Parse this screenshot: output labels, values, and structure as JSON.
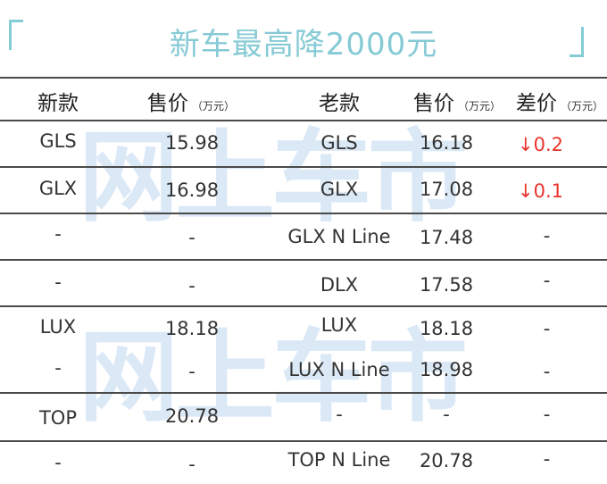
{
  "title": "新车最高降2000元",
  "watermark": "网上车市",
  "headers": {
    "new_model": "新款",
    "new_price": "售价",
    "new_price_unit": "（万元）",
    "old_model": "老款",
    "old_price": "售价",
    "old_price_unit": "（万元）",
    "diff": "差价",
    "diff_unit": "（万元）"
  },
  "rows": [
    {
      "new_model": "GLS",
      "new_price": "15.98",
      "old_model": "GLS",
      "old_price": "16.18",
      "diff": "↓0.2"
    },
    {
      "new_model": "GLX",
      "new_price": "16.98",
      "old_model": "GLX",
      "old_price": "17.08",
      "diff": "↓0.1"
    },
    {
      "new_model": "-",
      "new_price": "-",
      "old_model": "GLX N Line",
      "old_price": "17.48",
      "diff": "-"
    },
    {
      "new_model": "-",
      "new_price": "-",
      "old_model": "DLX",
      "old_price": "17.58",
      "diff": "-"
    },
    {
      "new_model": "LUX",
      "new_price": "18.18",
      "old_model": "LUX",
      "old_price": "18.18",
      "diff": "-"
    },
    {
      "new_model": "-",
      "new_price": "-",
      "old_model": "LUX N Line",
      "old_price": "18.98",
      "diff": "-"
    },
    {
      "new_model": "TOP",
      "new_price": "20.78",
      "old_model": "-",
      "old_price": "-",
      "diff": "-"
    },
    {
      "new_model": "-",
      "new_price": "-",
      "old_model": "TOP N Line",
      "old_price": "20.78",
      "diff": "-"
    }
  ]
}
